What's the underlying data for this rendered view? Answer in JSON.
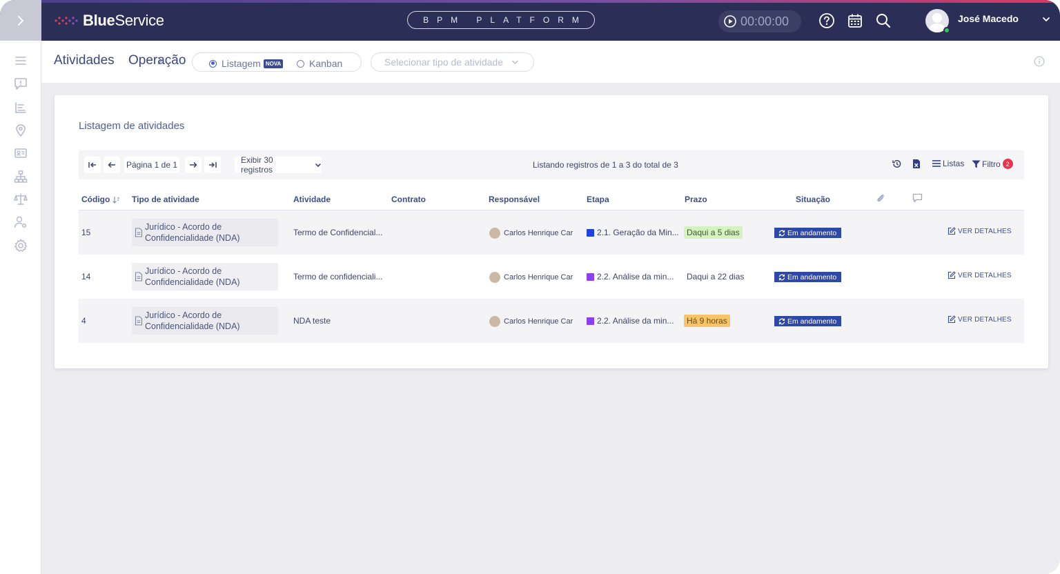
{
  "app": {
    "logo_bold": "Blue",
    "logo_light": "Service",
    "platform": "BPM PLATFORM",
    "timer": "00:00:00"
  },
  "user": {
    "name": "José Macedo"
  },
  "breadcrumb": {
    "root": "Atividades",
    "current": "Operação"
  },
  "view_toggle": {
    "list_label": "Listagem",
    "list_badge": "NOVA",
    "kanban_label": "Kanban",
    "selected": "Listagem"
  },
  "type_select": {
    "placeholder": "Selecionar tipo de atividade"
  },
  "card": {
    "title": "Listagem de atividades"
  },
  "toolbar": {
    "page_label": "Página 1 de 1",
    "page_size_label": "Exibir 30 registros",
    "summary": "Listando registros de 1 a 3 do total de 3",
    "lists_label": "Listas",
    "filter_label": "Filtro",
    "filter_count": "2"
  },
  "table": {
    "columns": {
      "code": "Código",
      "type": "Tipo de atividade",
      "activity": "Atividade",
      "contract": "Contrato",
      "owner": "Responsável",
      "stage": "Etapa",
      "deadline": "Prazo",
      "status": "Situação"
    },
    "details_label": "VER DETALHES",
    "rows": [
      {
        "code": "15",
        "type_line1": "Jurídico - Acordo de",
        "type_line2": "Confidencialidade (NDA)",
        "activity": "Termo de Confidencial...",
        "contract": "",
        "owner": "Carlos Henrique Car",
        "stage": "2.1. Geração da Min...",
        "stage_color": "#1f3fe0",
        "deadline": "Daqui a 5 dias",
        "deadline_bg": "#d6f2c2",
        "deadline_color": "#3d5a27",
        "status": "Em andamento"
      },
      {
        "code": "14",
        "type_line1": "Jurídico - Acordo de",
        "type_line2": "Confidencialidade (NDA)",
        "activity": "Termo de confidenciali...",
        "contract": "",
        "owner": "Carlos Henrique Car",
        "stage": "2.2. Análise da min...",
        "stage_color": "#8a3ff0",
        "deadline": "Daqui a 22 dias",
        "deadline_bg": "transparent",
        "deadline_color": "#3d4563",
        "status": "Em andamento"
      },
      {
        "code": "4",
        "type_line1": "Jurídico - Acordo de",
        "type_line2": "Confidencialidade (NDA)",
        "activity": "NDA teste",
        "contract": "",
        "owner": "Carlos Henrique Car",
        "stage": "2.2. Análise da min...",
        "stage_color": "#8a3ff0",
        "deadline": "Há 9 horas",
        "deadline_bg": "#f7c46a",
        "deadline_color": "#6b4a12",
        "status": "Em andamento"
      }
    ]
  },
  "sidebar": {
    "icons": [
      "menu-icon",
      "feedback-icon",
      "list-chart-icon",
      "location-icon",
      "id-card-icon",
      "org-chart-icon",
      "scale-icon",
      "user-settings-icon",
      "settings-icon"
    ]
  }
}
